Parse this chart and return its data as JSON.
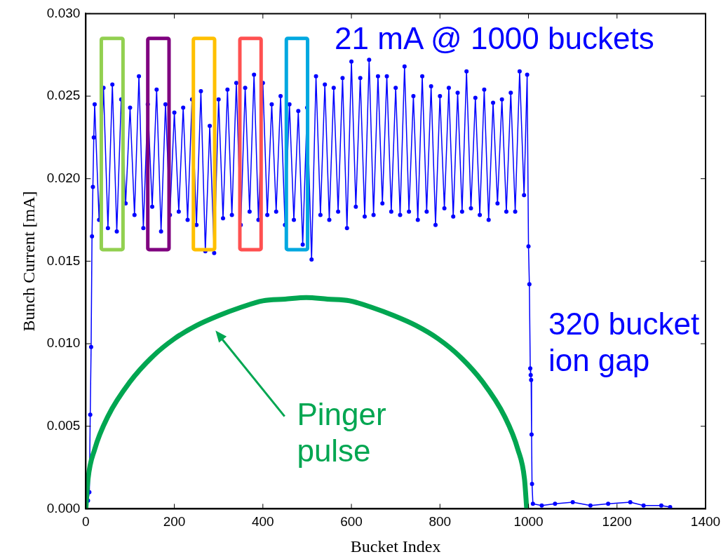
{
  "chart_data": {
    "type": "line",
    "xlabel": "Bucket Index",
    "ylabel": "Bunch Current [mA]",
    "xlim": [
      0,
      1400
    ],
    "xticks": [
      0,
      200,
      400,
      600,
      800,
      1000,
      1200,
      1400
    ],
    "ylim": [
      0,
      0.03
    ],
    "yticks": [
      {
        "value": 0,
        "label": "0.000"
      },
      {
        "value": 0.005,
        "label": "0.005"
      },
      {
        "value": 0.01,
        "label": "0.010"
      },
      {
        "value": 0.015,
        "label": "0.015"
      },
      {
        "value": 0.02,
        "label": "0.020"
      },
      {
        "value": 0.025,
        "label": "0.025"
      },
      {
        "value": 0.03,
        "label": "0.030"
      }
    ],
    "grid": false,
    "legend": false,
    "marker": "circle",
    "line_style": "solid",
    "annotations": [
      "21 mA @ 1000 buckets",
      "320 bucket\nion gap",
      "Pinger\npulse"
    ],
    "series": [
      {
        "type": "line",
        "color": "#00a651",
        "marker": "none",
        "x": [
          0,
          5,
          20,
          50,
          100,
          150,
          200,
          250,
          300,
          350,
          400,
          450,
          498,
          546,
          596,
          646,
          696,
          746,
          796,
          846,
          896,
          946,
          976,
          991,
          996
        ],
        "values": [
          0,
          0.0018,
          0.0036,
          0.0056,
          0.0077,
          0.0092,
          0.0103,
          0.0111,
          0.0117,
          0.0122,
          0.0126,
          0.0127,
          0.0128,
          0.0127,
          0.0126,
          0.0122,
          0.0117,
          0.0111,
          0.0103,
          0.0092,
          0.0077,
          0.0056,
          0.0036,
          0.0018,
          0
        ]
      },
      {
        "color": "#0000ff",
        "x": [
          0,
          5,
          8,
          10,
          12,
          14,
          16,
          18,
          20,
          30,
          40,
          50,
          60,
          70,
          80,
          90,
          100,
          110,
          120,
          130,
          140,
          150,
          160,
          170,
          180,
          190,
          200,
          210,
          220,
          230,
          240,
          250,
          260,
          270,
          280,
          290,
          300,
          310,
          320,
          330,
          340,
          350,
          360,
          370,
          380,
          390,
          400,
          410,
          420,
          430,
          440,
          450,
          460,
          470,
          480,
          490,
          500,
          510,
          520,
          530,
          540,
          550,
          560,
          570,
          580,
          590,
          600,
          610,
          620,
          630,
          640,
          650,
          660,
          670,
          680,
          690,
          700,
          710,
          720,
          730,
          740,
          750,
          760,
          770,
          780,
          790,
          800,
          810,
          820,
          830,
          840,
          850,
          860,
          870,
          880,
          890,
          900,
          910,
          920,
          930,
          940,
          950,
          960,
          970,
          980,
          990,
          997,
          1000,
          1002,
          1004,
          1005,
          1006,
          1007,
          1008,
          1010,
          1030,
          1060,
          1100,
          1140,
          1180,
          1230,
          1260,
          1300,
          1320
        ],
        "values": [
          0,
          0.0005,
          0.001,
          0.0057,
          0.0098,
          0.0165,
          0.0195,
          0.0225,
          0.0245,
          0.0175,
          0.0255,
          0.017,
          0.0257,
          0.0168,
          0.0248,
          0.0185,
          0.0243,
          0.0178,
          0.0262,
          0.017,
          0.0245,
          0.0183,
          0.0254,
          0.0168,
          0.0245,
          0.0178,
          0.024,
          0.018,
          0.0243,
          0.0175,
          0.0248,
          0.0172,
          0.0253,
          0.0156,
          0.0232,
          0.0155,
          0.0248,
          0.0176,
          0.0254,
          0.0178,
          0.0258,
          0.0172,
          0.0255,
          0.018,
          0.0263,
          0.0175,
          0.0258,
          0.0178,
          0.0245,
          0.018,
          0.025,
          0.0172,
          0.0245,
          0.0175,
          0.0241,
          0.016,
          0.0243,
          0.0151,
          0.0262,
          0.0178,
          0.0257,
          0.0175,
          0.0255,
          0.018,
          0.0261,
          0.017,
          0.0271,
          0.0183,
          0.0261,
          0.0177,
          0.0272,
          0.0178,
          0.0262,
          0.0185,
          0.0262,
          0.018,
          0.0255,
          0.0178,
          0.0268,
          0.018,
          0.025,
          0.0175,
          0.0262,
          0.018,
          0.0256,
          0.0172,
          0.025,
          0.0182,
          0.0255,
          0.0177,
          0.0252,
          0.018,
          0.0265,
          0.0182,
          0.0249,
          0.0178,
          0.0254,
          0.0175,
          0.0246,
          0.0185,
          0.0248,
          0.018,
          0.0252,
          0.018,
          0.0265,
          0.019,
          0.0263,
          0.0159,
          0.0136,
          0.0085,
          0.0081,
          0.0078,
          0.0045,
          0.0015,
          0.0003,
          0.0002,
          0.0003,
          0.0004,
          0.0002,
          0.0003,
          0.0004,
          0.0002,
          0.0002,
          0.0001
        ]
      }
    ]
  }
}
